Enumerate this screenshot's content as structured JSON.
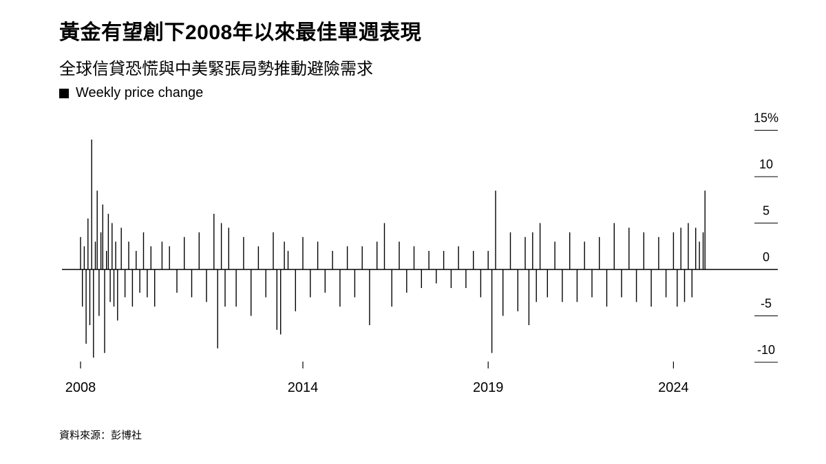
{
  "title": "黃金有望創下2008年以來最佳單週表現",
  "subtitle": "全球信貸恐慌與中美緊張局勢推動避險需求",
  "legend": "Weekly price change",
  "source": "資料來源：彭博社",
  "colors": {
    "bars": "#000000",
    "axis": "#000000",
    "background": "#ffffff"
  },
  "chart_data": {
    "type": "bar",
    "title": "黃金有望創下2008年以來最佳單週表現",
    "subtitle": "全球信貸恐慌與中美緊張局勢推動避險需求",
    "ylabel": "",
    "xlabel": "",
    "y_unit": "%",
    "ylim": [
      -11,
      15
    ],
    "y_ticks": [
      15,
      10,
      5,
      0,
      -5,
      -10
    ],
    "y_tick_labels": [
      "15%",
      "10",
      "5",
      "0",
      "-5",
      "-10"
    ],
    "x_range": [
      2008,
      2025.2
    ],
    "x_ticks": [
      2008,
      2014,
      2019,
      2024
    ],
    "x_tick_labels": [
      "2008",
      "2014",
      "2019",
      "2024"
    ],
    "grid": false,
    "legend_position": "top-left",
    "series": [
      {
        "name": "Weekly price change",
        "note": "weekly gold price change, values estimated from the chart",
        "x": [
          2008.0,
          2008.05,
          2008.1,
          2008.15,
          2008.2,
          2008.25,
          2008.3,
          2008.35,
          2008.4,
          2008.45,
          2008.5,
          2008.55,
          2008.6,
          2008.65,
          2008.7,
          2008.75,
          2008.8,
          2008.85,
          2008.9,
          2008.95,
          2009.0,
          2009.1,
          2009.2,
          2009.3,
          2009.4,
          2009.5,
          2009.6,
          2009.7,
          2009.8,
          2009.9,
          2010.0,
          2010.2,
          2010.4,
          2010.6,
          2010.8,
          2011.0,
          2011.2,
          2011.4,
          2011.6,
          2011.7,
          2011.8,
          2011.9,
          2012.0,
          2012.2,
          2012.4,
          2012.6,
          2012.8,
          2013.0,
          2013.2,
          2013.3,
          2013.4,
          2013.5,
          2013.6,
          2013.8,
          2014.0,
          2014.2,
          2014.4,
          2014.6,
          2014.8,
          2015.0,
          2015.2,
          2015.4,
          2015.6,
          2015.8,
          2016.0,
          2016.2,
          2016.4,
          2016.6,
          2016.8,
          2017.0,
          2017.2,
          2017.4,
          2017.6,
          2017.8,
          2018.0,
          2018.2,
          2018.4,
          2018.6,
          2018.8,
          2019.0,
          2019.1,
          2019.2,
          2019.4,
          2019.6,
          2019.8,
          2020.0,
          2020.1,
          2020.2,
          2020.3,
          2020.4,
          2020.6,
          2020.8,
          2021.0,
          2021.2,
          2021.4,
          2021.6,
          2021.8,
          2022.0,
          2022.2,
          2022.4,
          2022.6,
          2022.8,
          2023.0,
          2023.2,
          2023.4,
          2023.6,
          2023.8,
          2024.0,
          2024.1,
          2024.2,
          2024.3,
          2024.4,
          2024.5,
          2024.6,
          2024.7,
          2024.8,
          2024.85
        ],
        "values": [
          3.5,
          -4.0,
          2.5,
          -8.0,
          5.5,
          -6.0,
          14.0,
          -9.5,
          3.0,
          8.5,
          -5.0,
          4.0,
          7.0,
          -9.0,
          2.0,
          6.0,
          -3.5,
          5.0,
          -4.0,
          3.0,
          -5.5,
          4.5,
          -3.0,
          3.0,
          -4.0,
          2.0,
          -2.5,
          4.0,
          -3.0,
          2.5,
          -4.0,
          3.0,
          2.5,
          -2.5,
          3.5,
          -3.0,
          4.0,
          -3.5,
          6.0,
          -8.5,
          5.0,
          -4.0,
          4.5,
          -4.0,
          3.5,
          -5.0,
          2.5,
          -3.0,
          4.0,
          -6.5,
          -7.0,
          3.0,
          2.0,
          -4.5,
          3.5,
          -3.0,
          3.0,
          -2.5,
          2.0,
          -4.0,
          2.5,
          -3.0,
          2.5,
          -6.0,
          3.0,
          5.0,
          -4.0,
          3.0,
          -2.5,
          2.5,
          -2.0,
          2.0,
          -1.5,
          2.0,
          -2.0,
          2.5,
          -2.0,
          2.0,
          -3.0,
          2.0,
          -9.0,
          8.5,
          -5.0,
          4.0,
          -4.5,
          3.5,
          -6.0,
          4.0,
          -3.5,
          5.0,
          -3.0,
          3.0,
          -3.5,
          4.0,
          -3.5,
          3.0,
          -3.0,
          3.5,
          -4.0,
          5.0,
          -3.0,
          4.5,
          -3.5,
          4.0,
          -4.0,
          3.5,
          -3.0,
          4.0,
          -4.0,
          4.5,
          -3.5,
          5.0,
          -3.0,
          4.5,
          3.0,
          4.0,
          8.5
        ]
      }
    ]
  }
}
